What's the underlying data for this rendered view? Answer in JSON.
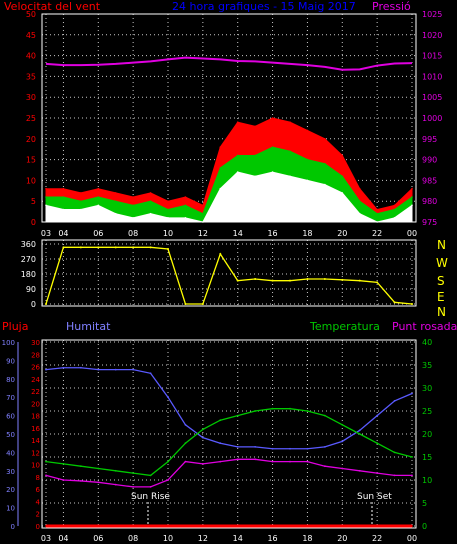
{
  "header": {
    "wind_label": "Velocitat del vent",
    "title": "24 hora grafiques - 15 Maig 2017",
    "pressure_label": "Pressió"
  },
  "mid": {
    "direction_letters": [
      "N",
      "W",
      "S",
      "E",
      "N"
    ]
  },
  "lower": {
    "rain_label": "Pluja",
    "humidity_label": "Humitat",
    "temperature_label": "Temperatura",
    "dewpoint_label": "Punt rosada",
    "sunrise_label": "Sun Rise",
    "sunset_label": "Sun Set"
  },
  "colors": {
    "background": "#000000",
    "panel_border": "#ffffff",
    "grid": "#c8c8c8",
    "wind_gust": "#ff0000",
    "wind_avg": "#00c800",
    "wind_min": "#ffffff",
    "pressure": "#e000e0",
    "direction": "#ffff00",
    "humidity": "#5a5aff",
    "temperature": "#00c800",
    "dewpoint": "#e000e0",
    "rain": "#ff0000",
    "left_axis_red": "#ff0000",
    "left_axis_blue": "#8080ff",
    "right_axis_green": "#00c800",
    "right_axis_magenta": "#e000e0",
    "header_title": "#0000ff"
  },
  "chart_data": [
    {
      "id": "wind",
      "type": "area",
      "hours": [
        "03",
        "04",
        "05",
        "06",
        "07",
        "08",
        "09",
        "10",
        "11",
        "12",
        "13",
        "14",
        "15",
        "16",
        "17",
        "18",
        "19",
        "20",
        "21",
        "22",
        "23",
        "00"
      ],
      "x_ticks": [
        "03",
        "04",
        "06",
        "08",
        "10",
        "12",
        "14",
        "16",
        "18",
        "20",
        "22",
        "00"
      ],
      "y_ticks": [
        "0",
        "5",
        "10",
        "15",
        "20",
        "25",
        "30",
        "35",
        "40",
        "45",
        "50"
      ],
      "ylim": [
        0,
        50
      ],
      "grid": true,
      "series": [
        {
          "key": "gust",
          "values": [
            8,
            8,
            7,
            8,
            7,
            6,
            7,
            5,
            6,
            4,
            18,
            24,
            23,
            25,
            24,
            22,
            20,
            16,
            8,
            3,
            4,
            8
          ]
        },
        {
          "key": "avg",
          "values": [
            6,
            6,
            5,
            6,
            5,
            4,
            5,
            3,
            4,
            2,
            13,
            16,
            16,
            18,
            17,
            15,
            14,
            11,
            5,
            2,
            3,
            6
          ]
        },
        {
          "key": "min",
          "values": [
            4,
            3,
            3,
            4,
            2,
            1,
            2,
            1,
            1,
            0,
            8,
            12,
            11,
            12,
            11,
            10,
            9,
            7,
            2,
            0,
            1,
            4
          ]
        }
      ]
    },
    {
      "id": "pressure",
      "type": "line",
      "y_ticks": [
        "975",
        "980",
        "985",
        "990",
        "995",
        "1000",
        "1005",
        "1010",
        "1015",
        "1020",
        "1025"
      ],
      "ylim": [
        975,
        1025
      ],
      "values": [
        1013,
        1012.7,
        1012.7,
        1012.8,
        1013,
        1013.3,
        1013.6,
        1014.1,
        1014.5,
        1014.3,
        1014.1,
        1013.7,
        1013.6,
        1013.3,
        1013,
        1012.7,
        1012.3,
        1011.6,
        1011.7,
        1012.6,
        1013.1,
        1013.2
      ]
    },
    {
      "id": "direction",
      "type": "line",
      "y_ticks": [
        "0",
        "90",
        "180",
        "270",
        "360"
      ],
      "ylim": [
        0,
        360
      ],
      "values": [
        0,
        340,
        340,
        340,
        340,
        340,
        340,
        330,
        0,
        0,
        300,
        140,
        150,
        140,
        140,
        150,
        150,
        145,
        140,
        130,
        10,
        0
      ]
    },
    {
      "id": "lower",
      "type": "line",
      "x_ticks": [
        "03",
        "04",
        "06",
        "08",
        "10",
        "12",
        "14",
        "16",
        "18",
        "20",
        "22",
        "00"
      ],
      "rain_ticks": [
        "0",
        "2",
        "4",
        "6",
        "8",
        "10",
        "12",
        "14",
        "16",
        "18",
        "20",
        "22",
        "24",
        "26",
        "28",
        "30"
      ],
      "humidity_ticks": [
        "0",
        "10",
        "20",
        "30",
        "40",
        "50",
        "60",
        "70",
        "80",
        "90",
        "100"
      ],
      "temperature_ticks": [
        "0",
        "5",
        "10",
        "15",
        "20",
        "25",
        "30",
        "35",
        "40"
      ],
      "hours": [
        "03",
        "04",
        "05",
        "06",
        "07",
        "08",
        "09",
        "10",
        "11",
        "12",
        "13",
        "14",
        "15",
        "16",
        "17",
        "18",
        "19",
        "20",
        "21",
        "22",
        "23",
        "00"
      ],
      "series": [
        {
          "key": "humidity",
          "ylim": [
            0,
            100
          ],
          "values": [
            85,
            86,
            86,
            85,
            85,
            85,
            83,
            70,
            55,
            48,
            45,
            43,
            43,
            42,
            42,
            42,
            43,
            46,
            52,
            60,
            68,
            72
          ]
        },
        {
          "key": "temperature",
          "ylim": [
            0,
            40
          ],
          "values": [
            14,
            13.5,
            13,
            12.5,
            12,
            11.5,
            11,
            14,
            18,
            21,
            23,
            24,
            25,
            25.5,
            25.5,
            25,
            24,
            22,
            20,
            18,
            16,
            15
          ]
        },
        {
          "key": "dewpoint",
          "ylim": [
            0,
            40
          ],
          "values": [
            11,
            10,
            9.8,
            9.5,
            9,
            8.5,
            8.5,
            10,
            14,
            13.5,
            14,
            14.5,
            14.5,
            14,
            14,
            14,
            13,
            12.5,
            12,
            11.5,
            11,
            11
          ]
        },
        {
          "key": "rain",
          "ylim": [
            0,
            30
          ],
          "values": [
            0,
            0,
            0,
            0,
            0,
            0,
            0,
            0,
            0,
            0,
            0,
            0,
            0,
            0,
            0,
            0,
            0,
            0,
            0,
            0,
            0,
            0
          ]
        }
      ]
    }
  ]
}
